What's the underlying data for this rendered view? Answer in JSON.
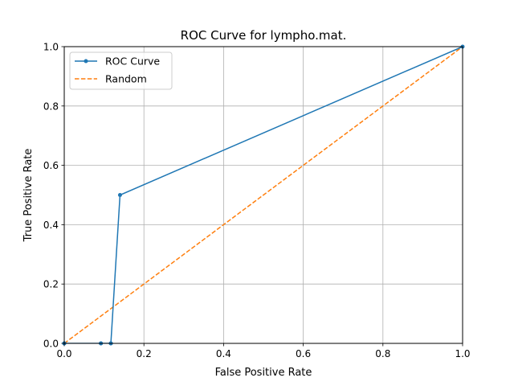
{
  "chart_data": {
    "type": "line",
    "title": "ROC Curve for lympho.mat.",
    "xlabel": "False Positive Rate",
    "ylabel": "True Positive Rate",
    "xlim": [
      0,
      1
    ],
    "ylim": [
      0,
      1
    ],
    "xticks": [
      "0.0",
      "0.2",
      "0.4",
      "0.6",
      "0.8",
      "1.0"
    ],
    "yticks": [
      "0.0",
      "0.2",
      "0.4",
      "0.6",
      "0.8",
      "1.0"
    ],
    "grid": true,
    "legend_position": "top-left",
    "series": [
      {
        "name": "ROC Curve",
        "color": "#1f77b4",
        "style": "solid",
        "marker": "circle",
        "x": [
          0.0,
          0.0,
          0.092,
          0.092,
          0.117,
          0.117,
          0.14,
          1.0
        ],
        "y": [
          0.0,
          0.0,
          0.0,
          0.0,
          0.0,
          0.0,
          0.5,
          1.0
        ]
      },
      {
        "name": "Random",
        "color": "#ff7f0e",
        "style": "dashed",
        "marker": "none",
        "x": [
          0,
          1
        ],
        "y": [
          0,
          1
        ]
      }
    ]
  }
}
